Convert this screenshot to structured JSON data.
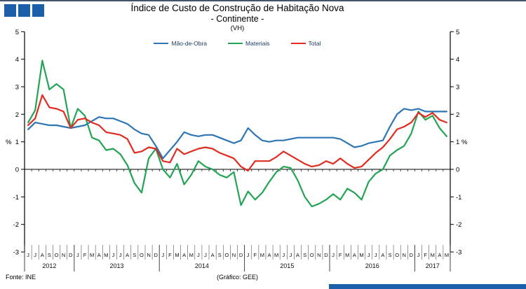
{
  "header": {
    "title_line1": "Índice de Custo de Construção de Habitação Nova",
    "title_line2": "- Continente -",
    "title_line3": "(VH)"
  },
  "footer": {
    "source": "Fonte: INE",
    "credit": "(Gráfico: GEE)"
  },
  "colors": {
    "logo_blue": "#1b5ea9",
    "footer_bar_blue": "#1b5ea9",
    "top_border": "#44546a"
  },
  "chart_data": {
    "type": "line",
    "axis_unit": "%",
    "ylim": [
      -3,
      5
    ],
    "y_ticks": [
      5,
      4,
      3,
      2,
      1,
      0,
      -1,
      -2,
      -3
    ],
    "grid": false,
    "legend_position": "top-center",
    "months": [
      "J",
      "J",
      "A",
      "S",
      "O",
      "N",
      "D",
      "J",
      "F",
      "M",
      "A",
      "M",
      "J",
      "J",
      "A",
      "S",
      "O",
      "N",
      "D",
      "J",
      "F",
      "M",
      "A",
      "M",
      "J",
      "J",
      "A",
      "S",
      "O",
      "N",
      "D",
      "J",
      "F",
      "M",
      "A",
      "M",
      "J",
      "J",
      "A",
      "S",
      "O",
      "N",
      "D",
      "J",
      "F",
      "M",
      "A",
      "M",
      "J",
      "J",
      "A",
      "S",
      "O",
      "N",
      "D",
      "J",
      "F",
      "M",
      "A",
      "M"
    ],
    "years": [
      {
        "label": "2012",
        "span": 7
      },
      {
        "label": "2013",
        "span": 12
      },
      {
        "label": "2014",
        "span": 12
      },
      {
        "label": "2015",
        "span": 12
      },
      {
        "label": "2016",
        "span": 12
      },
      {
        "label": "2017",
        "span": 5
      }
    ],
    "series": [
      {
        "id": "mao-de-obra",
        "name": "Mão-de-Obra",
        "color": "#2e75b6",
        "values": [
          1.45,
          1.7,
          1.65,
          1.6,
          1.6,
          1.55,
          1.5,
          1.55,
          1.6,
          1.75,
          1.9,
          1.85,
          1.85,
          1.75,
          1.65,
          1.45,
          1.3,
          1.25,
          0.85,
          0.4,
          0.7,
          1.0,
          1.35,
          1.25,
          1.2,
          1.25,
          1.25,
          1.15,
          1.05,
          0.95,
          1.05,
          1.5,
          1.25,
          1.05,
          1.0,
          1.05,
          1.05,
          1.1,
          1.15,
          1.15,
          1.15,
          1.15,
          1.15,
          1.15,
          1.1,
          0.95,
          0.8,
          0.85,
          0.95,
          1.0,
          1.05,
          1.55,
          2.0,
          2.2,
          2.15,
          2.2,
          2.1,
          2.1,
          2.1,
          2.1
        ]
      },
      {
        "id": "materiais",
        "name": "Materiais",
        "color": "#23a455",
        "values": [
          1.7,
          2.15,
          3.95,
          2.9,
          3.1,
          2.9,
          1.5,
          2.2,
          1.95,
          1.15,
          1.05,
          0.7,
          0.75,
          0.55,
          0.15,
          -0.5,
          -0.85,
          0.4,
          0.75,
          0.0,
          -0.3,
          0.2,
          -0.55,
          -0.2,
          0.3,
          0.1,
          0.0,
          -0.2,
          -0.3,
          -0.1,
          -1.3,
          -0.8,
          -1.1,
          -0.85,
          -0.45,
          -0.1,
          0.1,
          0.05,
          -0.4,
          -1.0,
          -1.35,
          -1.25,
          -1.1,
          -0.9,
          -1.1,
          -0.7,
          -0.85,
          -1.1,
          -0.45,
          -0.15,
          0.0,
          0.5,
          0.7,
          0.85,
          1.3,
          2.1,
          1.8,
          1.95,
          1.5,
          1.2
        ]
      },
      {
        "id": "total",
        "name": "Total",
        "color": "#e02b20",
        "values": [
          1.6,
          1.85,
          2.7,
          2.25,
          2.2,
          2.1,
          1.5,
          1.8,
          1.85,
          1.7,
          1.6,
          1.35,
          1.3,
          1.25,
          1.1,
          0.6,
          0.65,
          0.8,
          0.75,
          0.3,
          0.25,
          0.75,
          0.55,
          0.65,
          0.75,
          0.8,
          0.75,
          0.6,
          0.5,
          0.4,
          0.1,
          -0.05,
          0.3,
          0.3,
          0.3,
          0.45,
          0.65,
          0.5,
          0.35,
          0.2,
          0.1,
          0.15,
          0.3,
          0.2,
          0.4,
          0.2,
          0.05,
          0.1,
          0.35,
          0.6,
          0.8,
          1.1,
          1.45,
          1.55,
          1.7,
          2.05,
          1.9,
          2.05,
          1.8,
          1.7
        ]
      }
    ]
  }
}
